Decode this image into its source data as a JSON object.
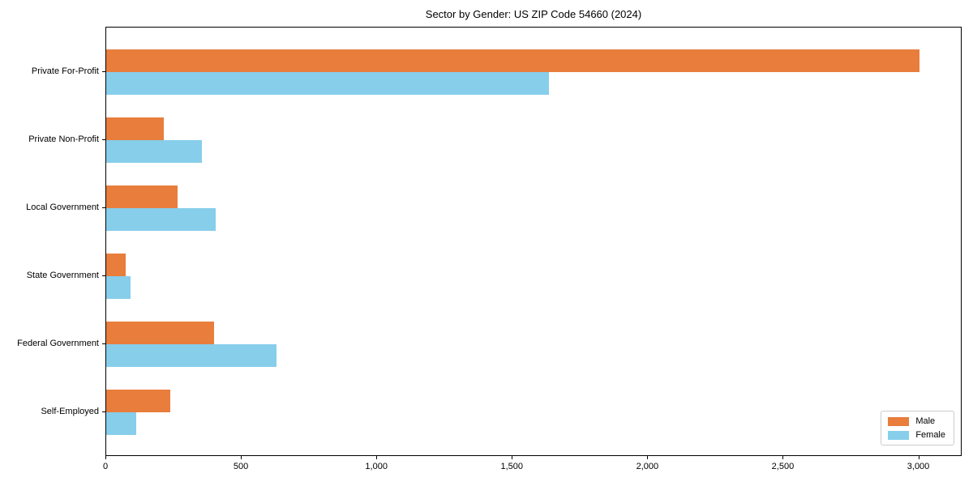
{
  "title": "Sector by Gender: US ZIP Code 54660 (2024)",
  "chart_data": {
    "type": "bar",
    "orientation": "horizontal",
    "title": "Sector by Gender: US ZIP Code 54660 (2024)",
    "categories": [
      "Private For-Profit",
      "Private Non-Profit",
      "Local Government",
      "State Government",
      "Federal Government",
      "Self-Employed"
    ],
    "series": [
      {
        "name": "Male",
        "color": "#e87d3c",
        "values": [
          3008,
          212,
          263,
          72,
          398,
          236
        ]
      },
      {
        "name": "Female",
        "color": "#87ceeb",
        "values": [
          1637,
          353,
          404,
          90,
          631,
          111
        ]
      }
    ],
    "xlabel": "",
    "ylabel": "",
    "xlim": [
      0,
      3160
    ],
    "xticks": [
      0,
      500,
      1000,
      1500,
      2000,
      2500,
      3000
    ],
    "xtick_labels": [
      "0",
      "500",
      "1,000",
      "1,500",
      "2,000",
      "2,500",
      "3,000"
    ],
    "grid": false,
    "legend_position": "lower right",
    "background": "#ffffff"
  }
}
